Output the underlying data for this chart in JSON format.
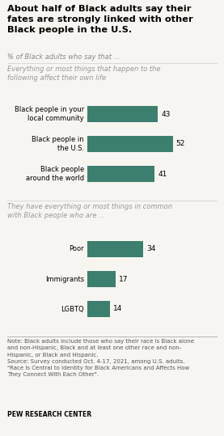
{
  "title": "About half of Black adults say their\nfates are strongly linked with other\nBlack people in the U.S.",
  "subtitle": "% of Black adults who say that ...",
  "section1_label": "Everything or most things that happen to the\nfollowing affect their own life",
  "section2_label": "They have everything or most things in common\nwith Black people who are ...",
  "group1_categories": [
    "Black people in your\nlocal community",
    "Black people in\nthe U.S.",
    "Black people\naround the world"
  ],
  "group1_values": [
    43,
    52,
    41
  ],
  "group2_categories": [
    "Poor",
    "Immigrants",
    "LGBTQ"
  ],
  "group2_values": [
    34,
    17,
    14
  ],
  "bar_color": "#3d7f6e",
  "xlim_max": 65,
  "note_text": "Note: Black adults include those who say their race is Black alone\nand non-Hispanic, Black and at least one other race and non-\nHispanic, or Black and Hispanic.\nSource: Survey conducted Oct. 4-17, 2021, among U.S. adults.\n\"Race Is Central to Identity for Black Americans and Affects How\nThey Connect With Each Other\".",
  "footer": "PEW RESEARCH CENTER",
  "background_color": "#f7f5f0",
  "title_fontsize": 8.2,
  "subtitle_fontsize": 6.0,
  "section_label_fontsize": 6.0,
  "bar_label_fontsize": 6.5,
  "category_fontsize": 6.0,
  "note_fontsize": 5.0,
  "footer_fontsize": 5.5
}
